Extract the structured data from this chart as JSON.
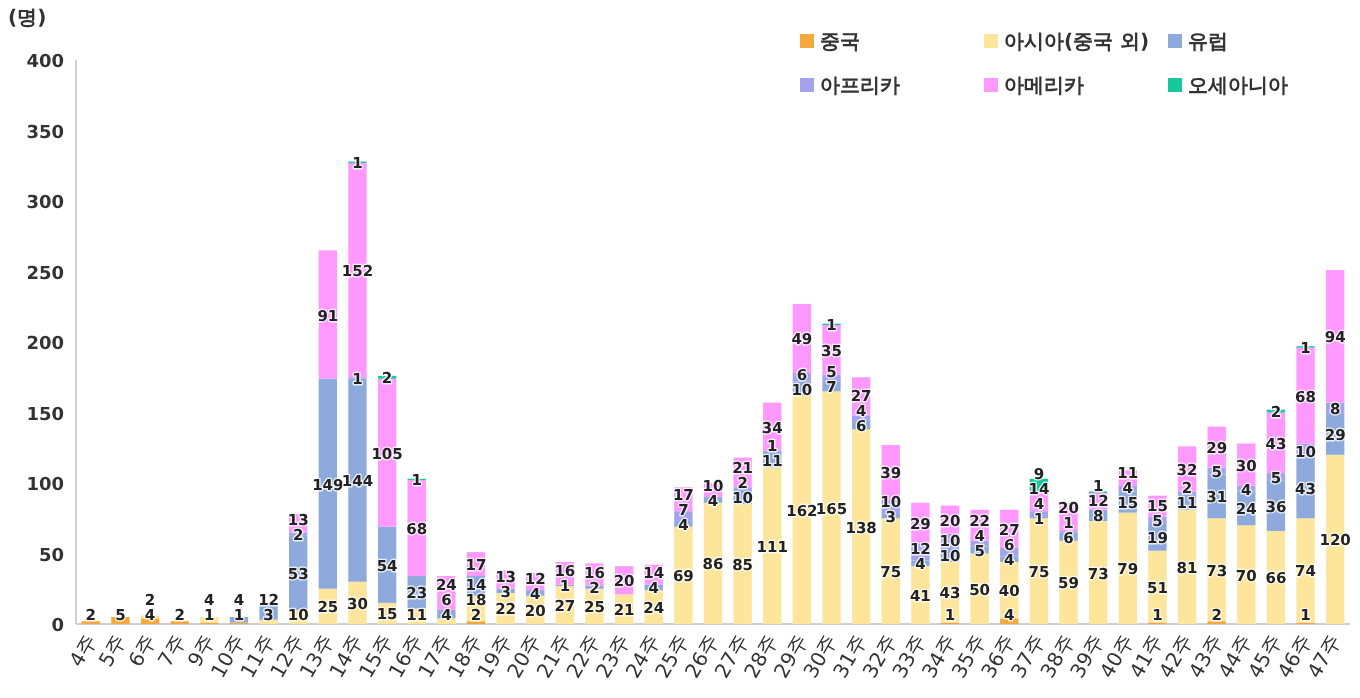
{
  "chart_data": {
    "type": "bar",
    "stacked": true,
    "ylabel": "(명)",
    "categories": [
      "4주",
      "5주",
      "6주",
      "7주",
      "9주",
      "10주",
      "11주",
      "12주",
      "13주",
      "14주",
      "15주",
      "16주",
      "17주",
      "18주",
      "19주",
      "20주",
      "21주",
      "22주",
      "23주",
      "24주",
      "25주",
      "26주",
      "27주",
      "28주",
      "29주",
      "30주",
      "31주",
      "32주",
      "33주",
      "34주",
      "35주",
      "36주",
      "37주",
      "38주",
      "39주",
      "40주",
      "41주",
      "42주",
      "43주",
      "44주",
      "45주",
      "46주",
      "47주"
    ],
    "series": [
      {
        "name": "중국",
        "color": "#f4a83c",
        "values": [
          2,
          5,
          4,
          2,
          1,
          1,
          null,
          null,
          null,
          null,
          null,
          null,
          null,
          2,
          null,
          null,
          null,
          null,
          null,
          null,
          null,
          null,
          null,
          null,
          null,
          null,
          null,
          null,
          null,
          1,
          null,
          4,
          null,
          null,
          null,
          null,
          1,
          null,
          2,
          null,
          null,
          1,
          null
        ]
      },
      {
        "name": "아시아(중국 외)",
        "color": "#fde59c",
        "values": [
          null,
          null,
          2,
          null,
          4,
          null,
          3,
          10,
          25,
          30,
          15,
          11,
          4,
          18,
          22,
          20,
          27,
          25,
          21,
          24,
          69,
          86,
          85,
          111,
          162,
          165,
          138,
          75,
          41,
          43,
          50,
          40,
          75,
          59,
          73,
          79,
          51,
          81,
          73,
          70,
          66,
          74,
          120
        ]
      },
      {
        "name": "유럽",
        "color": "#8eaadc",
        "values": [
          null,
          null,
          null,
          null,
          null,
          4,
          12,
          53,
          149,
          144,
          54,
          23,
          6,
          14,
          3,
          4,
          1,
          2,
          null,
          4,
          4,
          4,
          10,
          11,
          10,
          7,
          6,
          3,
          4,
          10,
          5,
          4,
          1,
          6,
          8,
          15,
          19,
          11,
          31,
          24,
          36,
          43,
          29
        ]
      },
      {
        "name": "아프리카",
        "color": "#a3a3ee",
        "values": [
          null,
          null,
          null,
          null,
          null,
          null,
          null,
          2,
          null,
          1,
          null,
          null,
          null,
          null,
          null,
          null,
          null,
          null,
          null,
          null,
          7,
          null,
          2,
          1,
          6,
          5,
          4,
          10,
          12,
          10,
          4,
          6,
          4,
          1,
          null,
          4,
          5,
          2,
          5,
          4,
          5,
          10,
          8
        ]
      },
      {
        "name": "아메리카",
        "color": "#ff99ff",
        "values": [
          null,
          null,
          null,
          null,
          null,
          null,
          null,
          13,
          91,
          152,
          105,
          68,
          24,
          17,
          13,
          12,
          16,
          16,
          20,
          14,
          17,
          10,
          21,
          34,
          49,
          35,
          27,
          39,
          29,
          20,
          22,
          27,
          14,
          20,
          12,
          11,
          15,
          32,
          29,
          30,
          43,
          68,
          94
        ]
      },
      {
        "name": "오세아니아",
        "color": "#19c79d",
        "values": [
          null,
          null,
          null,
          null,
          null,
          null,
          null,
          null,
          null,
          1,
          2,
          1,
          null,
          null,
          null,
          null,
          null,
          null,
          null,
          null,
          null,
          null,
          null,
          null,
          null,
          1,
          null,
          null,
          null,
          null,
          null,
          null,
          9,
          null,
          1,
          null,
          null,
          null,
          null,
          null,
          2,
          1,
          null
        ]
      }
    ],
    "ylim": [
      0,
      400
    ],
    "yticks": [
      0,
      50,
      100,
      150,
      200,
      250,
      300,
      350,
      400
    ],
    "data_labels": true,
    "legend": "top right",
    "grid": false
  }
}
